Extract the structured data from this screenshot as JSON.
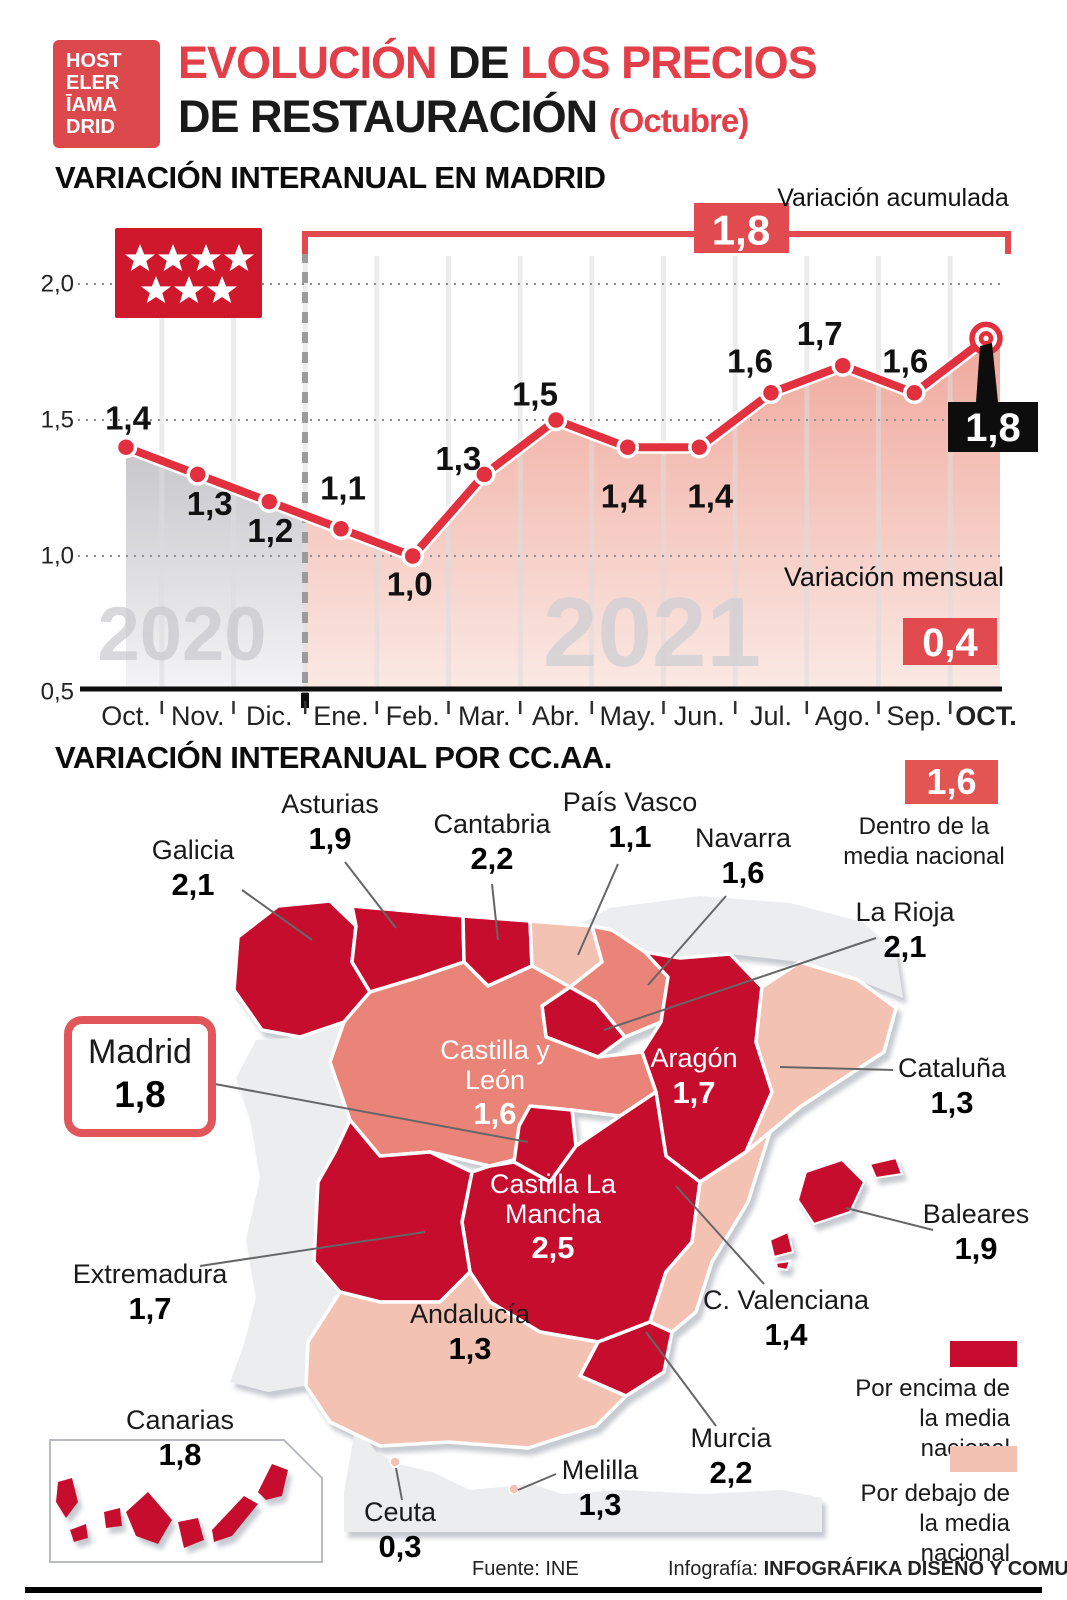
{
  "logo": {
    "rows": [
      "HOST",
      "ELER",
      "ĪAMA",
      "DRID"
    ]
  },
  "header": {
    "title_line1_red1": "EVOLUCIÓN",
    "title_line1_black": " DE ",
    "title_line1_red2": "LOS PRECIOS",
    "title_line2_black": "DE RESTAURACIÓN ",
    "title_line2_red": "(Octubre)"
  },
  "chart_section_title": "VARIACIÓN INTERANUAL EN MADRID",
  "chart_data": {
    "type": "line",
    "title": "VARIACIÓN INTERANUAL EN MADRID",
    "categories": [
      "Oct.",
      "Nov.",
      "Dic.",
      "Ene.",
      "Feb.",
      "Mar.",
      "Abr.",
      "May.",
      "Jun.",
      "Jul.",
      "Ago.",
      "Sep.",
      "OCT."
    ],
    "values": [
      1.4,
      1.3,
      1.2,
      1.1,
      1.0,
      1.3,
      1.5,
      1.4,
      1.4,
      1.6,
      1.7,
      1.6,
      1.8
    ],
    "point_labels": [
      "1,4",
      "1,3",
      "1,2",
      "1,1",
      "1,0",
      "1,3",
      "1,5",
      "1,4",
      "1,4",
      "1,6",
      "1,7",
      "1,6",
      "1,8"
    ],
    "yticks": [
      "2,0",
      "1,5",
      "1,0",
      "0,5"
    ],
    "ytick_values": [
      2.0,
      1.5,
      1.0,
      0.5
    ],
    "ylim": [
      0.5,
      2.15
    ],
    "grid": "dotted-horizontal",
    "legend_position": "none",
    "year_left": "2020",
    "year_right": "2021",
    "annotations": {
      "accumulated_label": "Variación acumulada",
      "accumulated_value": "1,8",
      "monthly_label": "Variación mensual",
      "monthly_value": "0,4",
      "final_value": "1,8"
    }
  },
  "map": {
    "section_title": "VARIACIÓN INTERANUAL POR CC.AA.",
    "national": {
      "value": "1,6",
      "label": "Dentro de la media nacional"
    },
    "legend_above": "Por encima de la media nacional",
    "legend_below": "Por debajo de la media nacional",
    "regions": {
      "galicia": {
        "name": "Galicia",
        "value": "2,1",
        "status": "above"
      },
      "asturias": {
        "name": "Asturias",
        "value": "1,9",
        "status": "above"
      },
      "cantabria": {
        "name": "Cantabria",
        "value": "2,2",
        "status": "above"
      },
      "pais_vasco": {
        "name": "País Vasco",
        "value": "1,1",
        "status": "below"
      },
      "navarra": {
        "name": "Navarra",
        "value": "1,6",
        "status": "within"
      },
      "la_rioja": {
        "name": "La Rioja",
        "value": "2,1",
        "status": "above"
      },
      "cataluna": {
        "name": "Cataluña",
        "value": "1,3",
        "status": "below"
      },
      "castilla_leon": {
        "name": "Castilla y León",
        "value": "1,6",
        "status": "within"
      },
      "aragon": {
        "name": "Aragón",
        "value": "1,7",
        "status": "above"
      },
      "madrid": {
        "name": "Madrid",
        "value": "1,8",
        "status": "above"
      },
      "castilla_mancha": {
        "name": "Castilla La Mancha",
        "value": "2,5",
        "status": "above"
      },
      "extremadura": {
        "name": "Extremadura",
        "value": "1,7",
        "status": "above"
      },
      "c_valenciana": {
        "name": "C. Valenciana",
        "value": "1,4",
        "status": "below"
      },
      "murcia": {
        "name": "Murcia",
        "value": "2,2",
        "status": "above"
      },
      "andalucia": {
        "name": "Andalucía",
        "value": "1,3",
        "status": "below"
      },
      "baleares": {
        "name": "Baleares",
        "value": "1,9",
        "status": "above"
      },
      "canarias": {
        "name": "Canarias",
        "value": "1,8",
        "status": "above"
      },
      "ceuta": {
        "name": "Ceuta",
        "value": "0,3",
        "status": "below"
      },
      "melilla": {
        "name": "Melilla",
        "value": "1,3",
        "status": "below"
      }
    }
  },
  "colors": {
    "above": "#C60B2F",
    "within": "#EA8478",
    "below": "#F4C2B2",
    "neutral": "#EBEDEF",
    "badge_red": "#E14B50",
    "line_red": "#E3303E",
    "flag_red": "#D0182C",
    "title_red": "#E23F48"
  },
  "footer": {
    "source": "Fuente: INE",
    "credit_prefix": "Infografía: ",
    "credit": "INFOGRÁFIKA DISEÑO Y COMUNICACIÓN"
  }
}
